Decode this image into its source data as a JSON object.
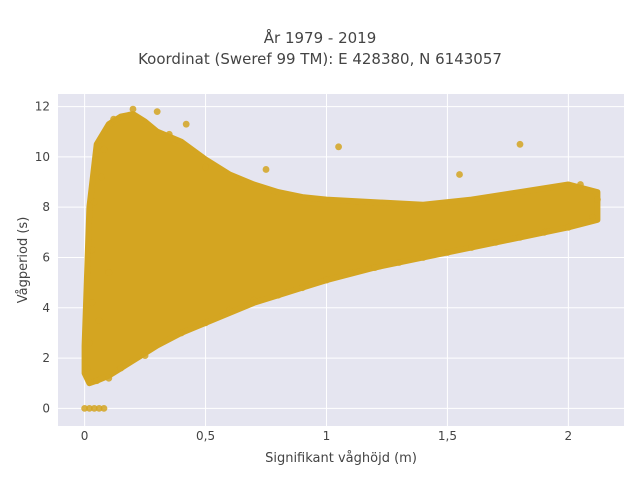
{
  "chart_data": {
    "type": "scatter",
    "title_line1": "År 1979 - 2019",
    "title_line2": "Koordinat (Sweref 99 TM): E 428380, N 6143057",
    "xlabel": "Signifikant våghöjd (m)",
    "ylabel": "Vågperiod (s)",
    "xlim": [
      -0.11,
      2.23
    ],
    "ylim": [
      -0.7,
      12.5
    ],
    "x_ticks": [
      0,
      0.5,
      1,
      1.5,
      2
    ],
    "x_tick_labels": [
      "0",
      "0,5",
      "1",
      "1,5",
      "2"
    ],
    "y_ticks": [
      0,
      2,
      4,
      6,
      8,
      10,
      12
    ],
    "y_tick_labels": [
      "0",
      "2",
      "4",
      "6",
      "8",
      "10",
      "12"
    ],
    "grid": true,
    "legend": "none",
    "background": "#e5e5f0",
    "gridline_color": "#ffffff",
    "marker_color": "#d4a521",
    "approx_points": [
      [
        0.0,
        0.0
      ],
      [
        0.02,
        0.0
      ],
      [
        0.04,
        0.0
      ],
      [
        0.06,
        0.0
      ],
      [
        0.08,
        0.0
      ],
      [
        0.01,
        1.6
      ],
      [
        0.02,
        2.6
      ],
      [
        0.03,
        4.2
      ],
      [
        0.03,
        6.3
      ],
      [
        0.04,
        8.2
      ],
      [
        0.05,
        1.1
      ],
      [
        0.06,
        3.5
      ],
      [
        0.07,
        9.2
      ],
      [
        0.08,
        10.3
      ],
      [
        0.1,
        1.2
      ],
      [
        0.1,
        5.4
      ],
      [
        0.12,
        11.5
      ],
      [
        0.15,
        1.6
      ],
      [
        0.2,
        11.9
      ],
      [
        0.25,
        2.1
      ],
      [
        0.3,
        11.8
      ],
      [
        0.35,
        10.9
      ],
      [
        0.4,
        3.0
      ],
      [
        0.42,
        11.3
      ],
      [
        0.5,
        3.4
      ],
      [
        0.5,
        9.6
      ],
      [
        0.6,
        3.9
      ],
      [
        0.7,
        4.3
      ],
      [
        0.75,
        9.5
      ],
      [
        0.8,
        4.5
      ],
      [
        0.9,
        4.8
      ],
      [
        1.0,
        5.1
      ],
      [
        1.05,
        10.4
      ],
      [
        1.1,
        5.4
      ],
      [
        1.2,
        5.6
      ],
      [
        1.3,
        5.8
      ],
      [
        1.4,
        6.0
      ],
      [
        1.5,
        6.2
      ],
      [
        1.55,
        9.3
      ],
      [
        1.6,
        6.4
      ],
      [
        1.7,
        6.6
      ],
      [
        1.8,
        6.8
      ],
      [
        1.8,
        10.5
      ],
      [
        1.9,
        7.0
      ],
      [
        2.0,
        7.2
      ],
      [
        2.05,
        8.9
      ],
      [
        2.1,
        7.6
      ],
      [
        2.12,
        8.3
      ]
    ],
    "band": {
      "x": [
        0.0,
        0.02,
        0.05,
        0.1,
        0.15,
        0.2,
        0.25,
        0.3,
        0.4,
        0.5,
        0.6,
        0.7,
        0.8,
        0.9,
        1.0,
        1.2,
        1.4,
        1.6,
        1.8,
        2.0,
        2.12
      ],
      "lower": [
        1.4,
        1.0,
        1.1,
        1.3,
        1.6,
        1.9,
        2.2,
        2.5,
        3.0,
        3.4,
        3.8,
        4.2,
        4.5,
        4.8,
        5.1,
        5.6,
        6.0,
        6.4,
        6.8,
        7.2,
        7.5
      ],
      "upper": [
        2.5,
        8.0,
        10.5,
        11.3,
        11.6,
        11.7,
        11.4,
        11.0,
        10.6,
        9.9,
        9.3,
        8.9,
        8.6,
        8.4,
        8.3,
        8.2,
        8.1,
        8.3,
        8.6,
        8.9,
        8.6
      ]
    }
  }
}
